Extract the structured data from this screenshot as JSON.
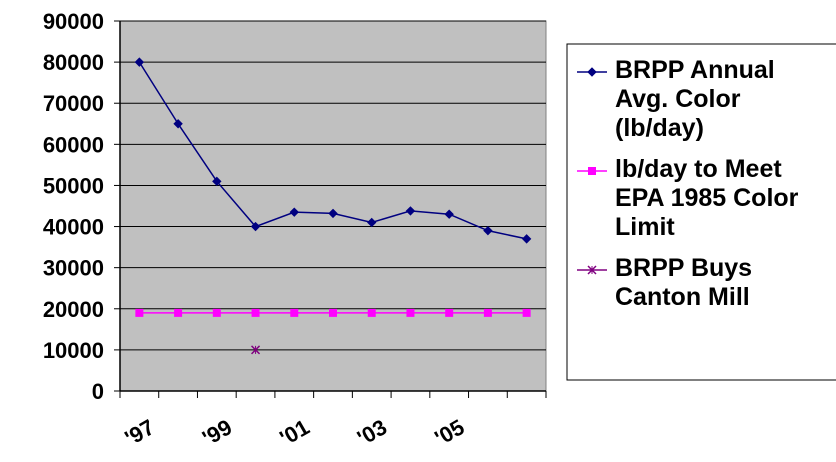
{
  "chart_data": {
    "type": "line",
    "title": "",
    "xlabel": "",
    "ylabel": "",
    "ylim": [
      0,
      90000
    ],
    "yticks": [
      0,
      10000,
      20000,
      30000,
      40000,
      50000,
      60000,
      70000,
      80000,
      90000
    ],
    "yticks_text": [
      "0",
      "10000",
      "20000",
      "30000",
      "40000",
      "50000",
      "60000",
      "70000",
      "80000",
      "90000"
    ],
    "x": [
      1997,
      1998,
      1999,
      2000,
      2001,
      2002,
      2003,
      2004,
      2005,
      2006,
      2007
    ],
    "xtick_labels": [
      {
        "x": 1997,
        "text": "'97"
      },
      {
        "x": 1999,
        "text": "'99"
      },
      {
        "x": 2001,
        "text": "'01"
      },
      {
        "x": 2003,
        "text": "'03"
      },
      {
        "x": 2005,
        "text": "'05"
      }
    ],
    "grid": true,
    "plot_background": "#c0c0c0",
    "legend_placement": "right",
    "series": [
      {
        "name": "BRPP Annual Avg. Color (lb/day)",
        "legend_lines": [
          "BRPP Annual",
          "Avg. Color",
          "(lb/day)"
        ],
        "color": "#000080",
        "marker": "diamond",
        "line": true,
        "x": [
          1997,
          1998,
          1999,
          2000,
          2001,
          2002,
          2003,
          2004,
          2005,
          2006,
          2007
        ],
        "values": [
          80000,
          65000,
          51000,
          40000,
          43500,
          43200,
          41000,
          43800,
          43000,
          39000,
          37000
        ]
      },
      {
        "name": "lb/day to Meet EPA 1985 Color Limit",
        "legend_lines": [
          "lb/day to Meet",
          "EPA 1985 Color",
          "Limit"
        ],
        "color": "#ff00ff",
        "marker": "square",
        "line": true,
        "x": [
          1997,
          1998,
          1999,
          2000,
          2001,
          2002,
          2003,
          2004,
          2005,
          2006,
          2007
        ],
        "values": [
          19000,
          19000,
          19000,
          19000,
          19000,
          19000,
          19000,
          19000,
          19000,
          19000,
          19000
        ]
      },
      {
        "name": "BRPP Buys Canton Mill",
        "legend_lines": [
          "BRPP Buys",
          "Canton Mill"
        ],
        "color": "#800080",
        "marker": "x",
        "line": false,
        "x": [
          2000
        ],
        "values": [
          10000
        ]
      }
    ]
  }
}
